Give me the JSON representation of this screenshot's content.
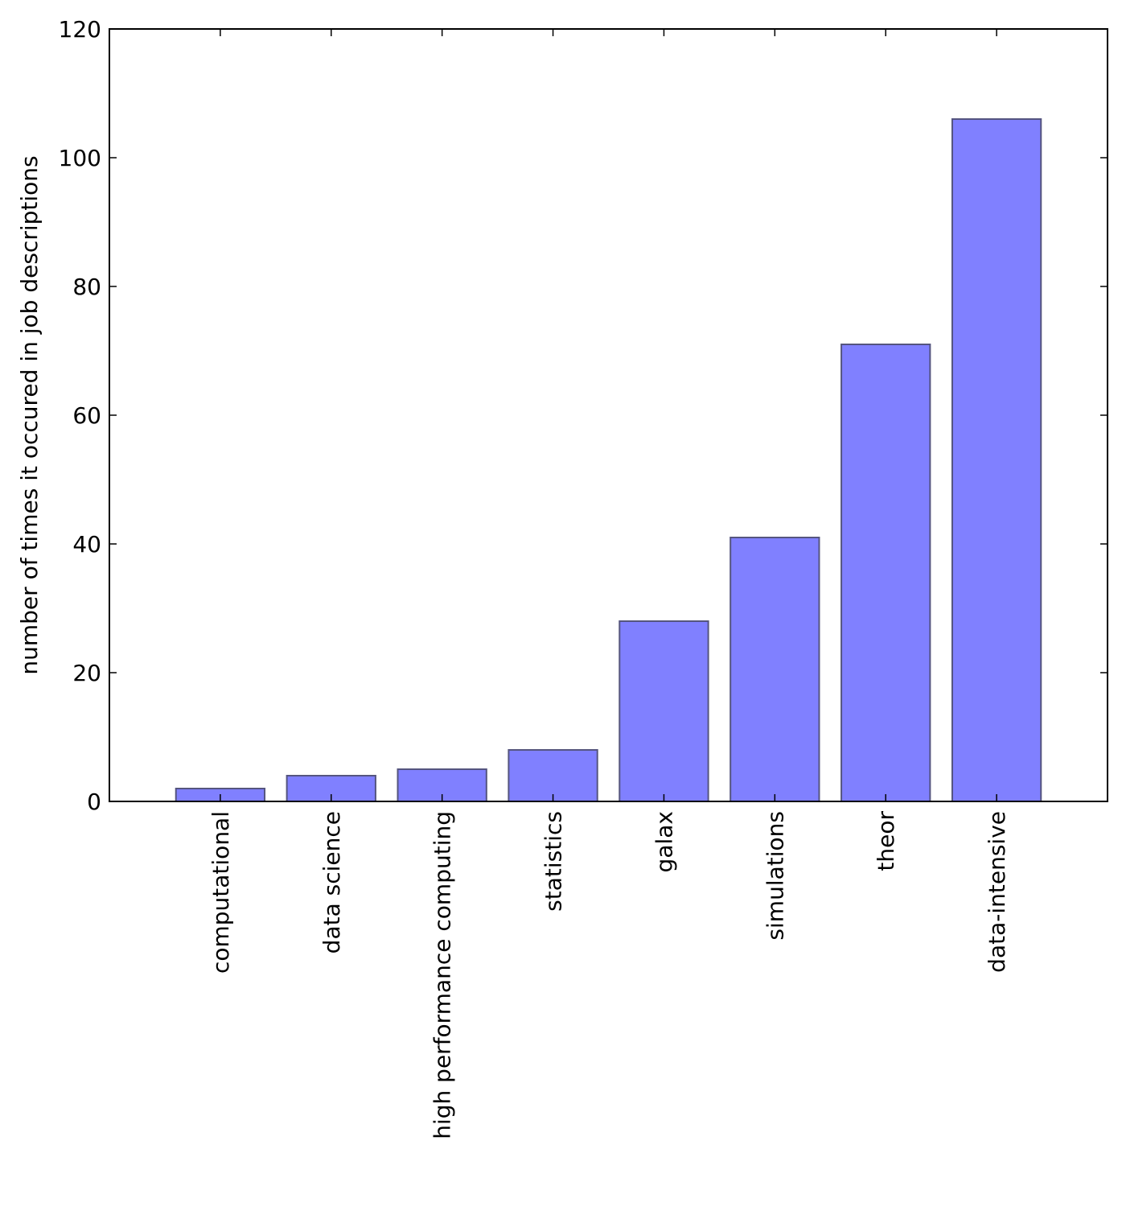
{
  "chart_data": {
    "type": "bar",
    "title": "",
    "xlabel": "",
    "ylabel": "number of times it occured in job descriptions",
    "categories": [
      "computational",
      "data science",
      "high performance computing",
      "statistics",
      "galax",
      "simulations",
      "theor",
      "data-intensive"
    ],
    "values": [
      2,
      4,
      5,
      8,
      28,
      41,
      71,
      106
    ],
    "ylim": [
      0,
      120
    ],
    "yticks": [
      0,
      20,
      40,
      60,
      80,
      100,
      120
    ],
    "grid": false,
    "legend": "none",
    "bar_color": "#8080ff",
    "bar_edge_color": "#55557f"
  }
}
